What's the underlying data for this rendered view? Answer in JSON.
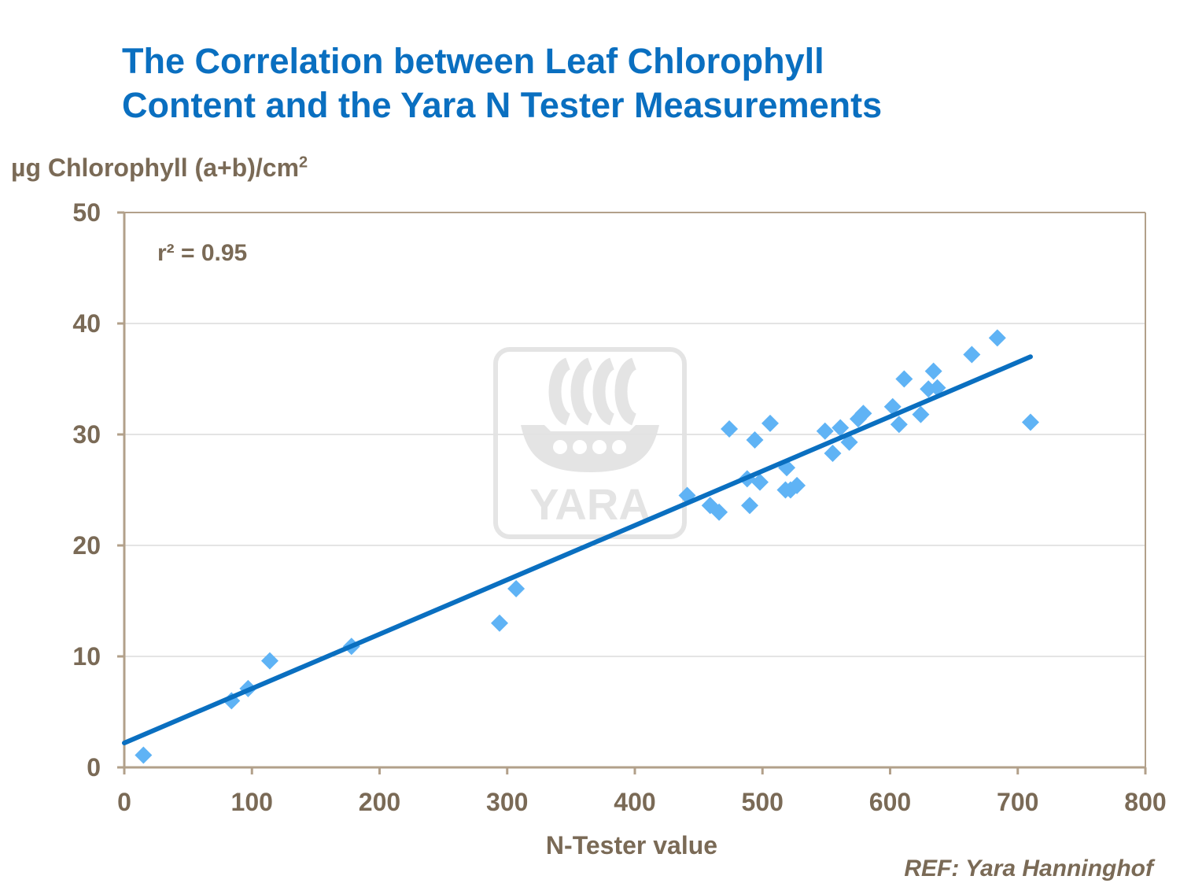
{
  "title_lines": [
    "The Correlation between Leaf Chlorophyll",
    "Content and the Yara N Tester Measurements"
  ],
  "ylabel_main": "µg Chlorophyll (a+b)/cm",
  "ylabel_sup": "2",
  "reference": "REF: Yara Hanninghof",
  "logo": {
    "text": "YARA",
    "icon": "yara-viking-ship-logo"
  },
  "colors": {
    "title": "#0a6fc0",
    "text": "#7a6a56",
    "axis": "#b2a08a",
    "grid": "#c8c8c8",
    "points": "#5fb3f5",
    "trendline": "#0a6fc0",
    "watermark": "#e2e2e2"
  },
  "chart_data": {
    "type": "scatter",
    "xlabel": "N-Tester value",
    "ylabel": "µg Chlorophyll (a+b)/cm2",
    "xlim": [
      0,
      800
    ],
    "ylim": [
      0,
      50
    ],
    "xticks": [
      0,
      100,
      200,
      300,
      400,
      500,
      600,
      700,
      800
    ],
    "yticks": [
      0,
      10,
      20,
      30,
      40,
      50
    ],
    "grid": "horizontal",
    "legend": "none",
    "annotation": "r² = 0.95",
    "trendline": {
      "x": [
        0,
        710
      ],
      "y": [
        2.2,
        37.0
      ]
    },
    "points": [
      [
        15,
        1.1
      ],
      [
        84,
        6.0
      ],
      [
        97,
        7.1
      ],
      [
        114,
        9.6
      ],
      [
        178,
        10.9
      ],
      [
        294,
        13.0
      ],
      [
        307,
        16.1
      ],
      [
        441,
        24.5
      ],
      [
        459,
        23.6
      ],
      [
        466,
        23.0
      ],
      [
        474,
        30.5
      ],
      [
        488,
        26.0
      ],
      [
        490,
        23.6
      ],
      [
        494,
        29.5
      ],
      [
        498,
        25.7
      ],
      [
        506,
        31.0
      ],
      [
        518,
        25.0
      ],
      [
        519,
        27.0
      ],
      [
        522,
        25.0
      ],
      [
        527,
        25.4
      ],
      [
        549,
        30.3
      ],
      [
        555,
        28.3
      ],
      [
        561,
        30.6
      ],
      [
        568,
        29.3
      ],
      [
        575,
        31.4
      ],
      [
        579,
        31.9
      ],
      [
        602,
        32.5
      ],
      [
        607,
        30.9
      ],
      [
        611,
        35.0
      ],
      [
        624,
        31.8
      ],
      [
        630,
        34.1
      ],
      [
        634,
        35.7
      ],
      [
        637,
        34.2
      ],
      [
        664,
        37.2
      ],
      [
        684,
        38.7
      ],
      [
        710,
        31.1
      ]
    ]
  }
}
